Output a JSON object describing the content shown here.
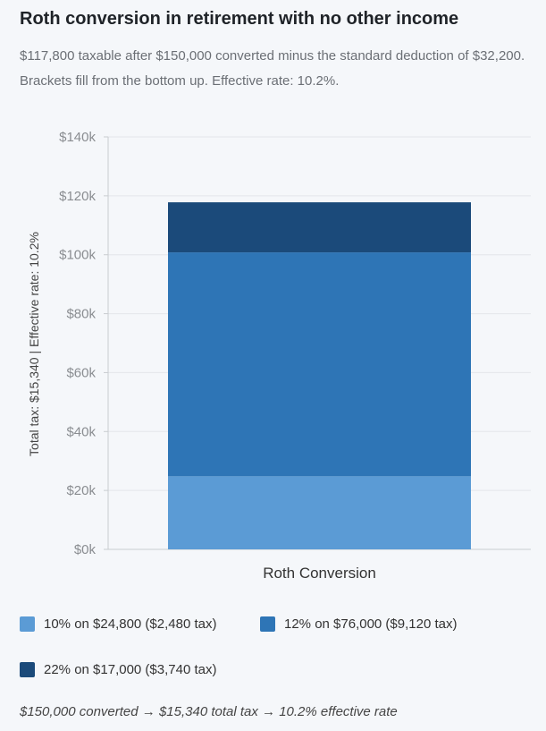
{
  "header": {
    "title": "Roth conversion in retirement with no other income",
    "subtitle": "$117,800 taxable after $150,000 converted minus the standard deduction of $32,200. Brackets fill from the bottom up. Effective rate: 10.2%."
  },
  "chart_data": {
    "type": "bar",
    "stacked": true,
    "categories": [
      "Roth Conversion"
    ],
    "series": [
      {
        "name": "10% on $24,800 ($2,480 tax)",
        "values": [
          24800
        ],
        "color": "#5b9bd5"
      },
      {
        "name": "12% on $76,000 ($9,120 tax)",
        "values": [
          76000
        ],
        "color": "#2e75b6"
      },
      {
        "name": "22% on $17,000 ($3,740 tax)",
        "values": [
          17000
        ],
        "color": "#1b4a7a"
      }
    ],
    "ylabel": "Total tax: $15,340  |  Effective rate: 10.2%",
    "ylim": [
      0,
      140000
    ],
    "yticks": [
      0,
      20000,
      40000,
      60000,
      80000,
      100000,
      120000,
      140000
    ],
    "ytick_labels": [
      "$0k",
      "$20k",
      "$40k",
      "$60k",
      "$80k",
      "$100k",
      "$120k",
      "$140k"
    ],
    "grid": true,
    "legend_position": "bottom"
  },
  "footnote": "$150,000 converted → $15,340 total tax → 10.2% effective rate"
}
